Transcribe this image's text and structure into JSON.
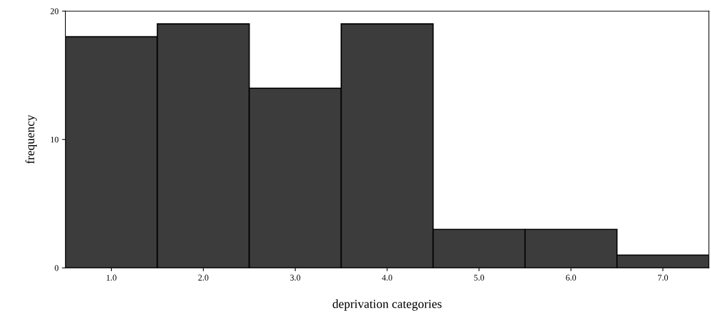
{
  "chart_data": {
    "type": "histogram",
    "xlabel": "deprivation categories",
    "ylabel": "frequency",
    "bins": [
      0.5,
      1.5,
      2.5,
      3.5,
      4.5,
      5.5,
      6.5,
      7.5
    ],
    "values": [
      18,
      19,
      14,
      19,
      3,
      3,
      1
    ],
    "color": "#3c3c3c",
    "xlim": [
      0.5,
      7.5
    ],
    "xticks": [
      {
        "value": 1,
        "label": "1.0"
      },
      {
        "value": 2,
        "label": "2.0"
      },
      {
        "value": 3,
        "label": "3.0"
      },
      {
        "value": 4,
        "label": "4.0"
      },
      {
        "value": 5,
        "label": "5.0"
      },
      {
        "value": 6,
        "label": "6.0"
      },
      {
        "value": 7,
        "label": "7.0"
      }
    ],
    "ylim": [
      0,
      20
    ],
    "yticks": [
      0,
      10,
      20
    ],
    "grid": false,
    "legend": false
  }
}
